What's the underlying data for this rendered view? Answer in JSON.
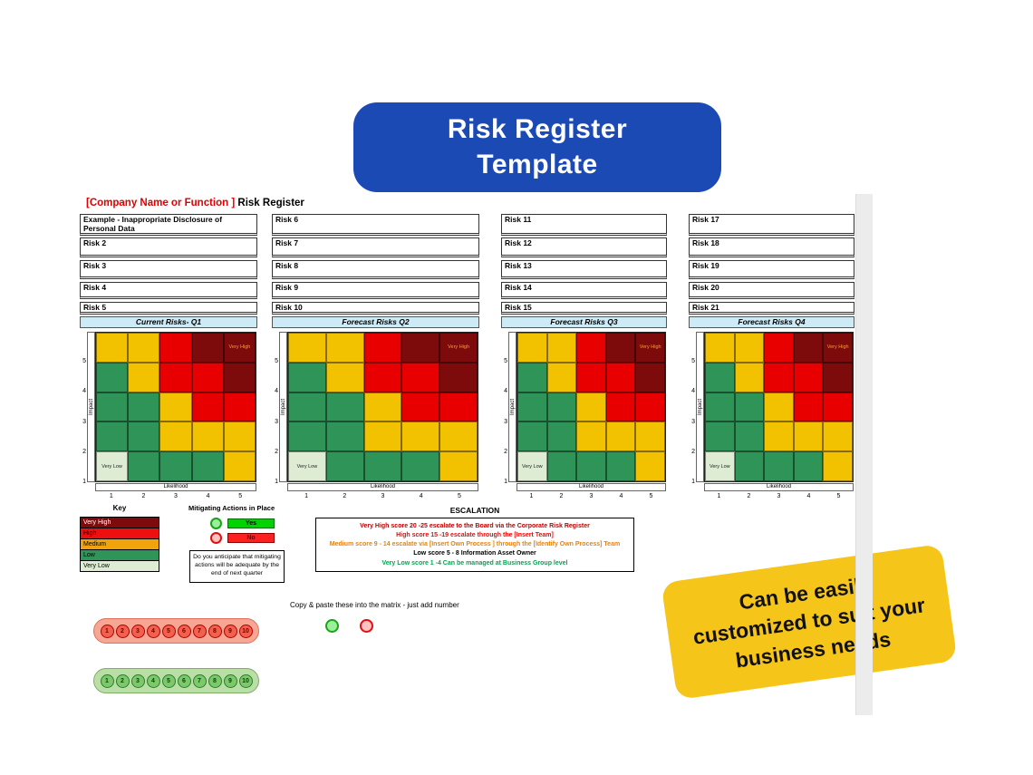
{
  "banner": {
    "line1": "Risk Register",
    "line2": "Template",
    "bg": "#1c4ab5"
  },
  "sheet_title": {
    "company": "[Company Name or Function ]",
    "suffix": " Risk Register"
  },
  "columns": [
    {
      "header": "Current Risks- Q1",
      "risks": [
        "Example - Inappropriate Disclosure of Personal Data",
        "Risk 2",
        "Risk 3",
        "Risk 4",
        "Risk 5"
      ]
    },
    {
      "header": "Forecast Risks Q2",
      "risks": [
        "Risk 6",
        "Risk 7",
        "Risk 8",
        "Risk 9",
        "Risk 10"
      ]
    },
    {
      "header": "Forecast Risks Q3",
      "risks": [
        "Risk 11",
        "Risk 12",
        "Risk 13",
        "Risk 14",
        "Risk 15"
      ]
    },
    {
      "header": "Forecast Risks Q4",
      "risks": [
        "Risk 17",
        "Risk 18",
        "Risk 19",
        "Risk 20",
        "Risk 21"
      ]
    }
  ],
  "matrix": {
    "ylabel": "Impact",
    "xlabel": "Likelihood",
    "y_ticks": [
      "5",
      "4",
      "3",
      "2",
      "1"
    ],
    "x_ticks": [
      "1",
      "2",
      "3",
      "4",
      "5"
    ],
    "grid": [
      [
        "M",
        "M",
        "H",
        "VH",
        "VH"
      ],
      [
        "L",
        "M",
        "H",
        "H",
        "VH"
      ],
      [
        "L",
        "L",
        "M",
        "H",
        "H"
      ],
      [
        "L",
        "L",
        "M",
        "M",
        "M"
      ],
      [
        "VL",
        "L",
        "L",
        "L",
        "M"
      ]
    ],
    "colors": {
      "VH": "#7d0b0b",
      "H": "#e80000",
      "M": "#f2c100",
      "L": "#2e9457",
      "VL": "#ddecd2"
    },
    "corner_top_right": "Very High",
    "corner_bottom_left": "Very Low"
  },
  "key": {
    "title": "Key",
    "items": [
      {
        "label": "Very High",
        "bg": "#7d0b0b",
        "fg": "#ffffff"
      },
      {
        "label": "High",
        "bg": "#ee1010",
        "fg": "#000000"
      },
      {
        "label": "Medium",
        "bg": "#f0a30a",
        "fg": "#000000"
      },
      {
        "label": "Low",
        "bg": "#2e9457",
        "fg": "#000000"
      },
      {
        "label": "Very Low",
        "bg": "#ddecd2",
        "fg": "#000000"
      }
    ]
  },
  "mitigating": {
    "title": "Mitigating Actions in Place",
    "yes": "Yes",
    "no": "No",
    "question": "Do you anticipate that mitigating actions will be adequate by the end of next quarter"
  },
  "escalation": {
    "title": "ESCALATION",
    "lines": [
      {
        "text": "Very High score 20 -25 escalate to the Board via the Corporate Risk Register",
        "color": "#c00000"
      },
      {
        "text": "High score 15 -19 escalate through the [Insert Team]",
        "color": "#ff0000"
      },
      {
        "text": "Medium score 9 - 14 escalate via [Insert Own Process ] through the [Identify Own Process] Team",
        "color": "#e8820c"
      },
      {
        "text": "Low score 5 - 8 Information Asset Owner",
        "color": "#000000"
      },
      {
        "text": "Very Low score 1 -4 Can be managed at Business Group level",
        "color": "#00a650"
      }
    ]
  },
  "copy_paste_label": "Copy & paste these into the matrix - just add number",
  "tokens": {
    "red": [
      "1",
      "2",
      "3",
      "4",
      "5",
      "6",
      "7",
      "8",
      "9",
      "10"
    ],
    "green": [
      "1",
      "2",
      "3",
      "4",
      "5",
      "6",
      "7",
      "8",
      "9",
      "10"
    ]
  },
  "note": "Can be easily customized to suit your business needs"
}
